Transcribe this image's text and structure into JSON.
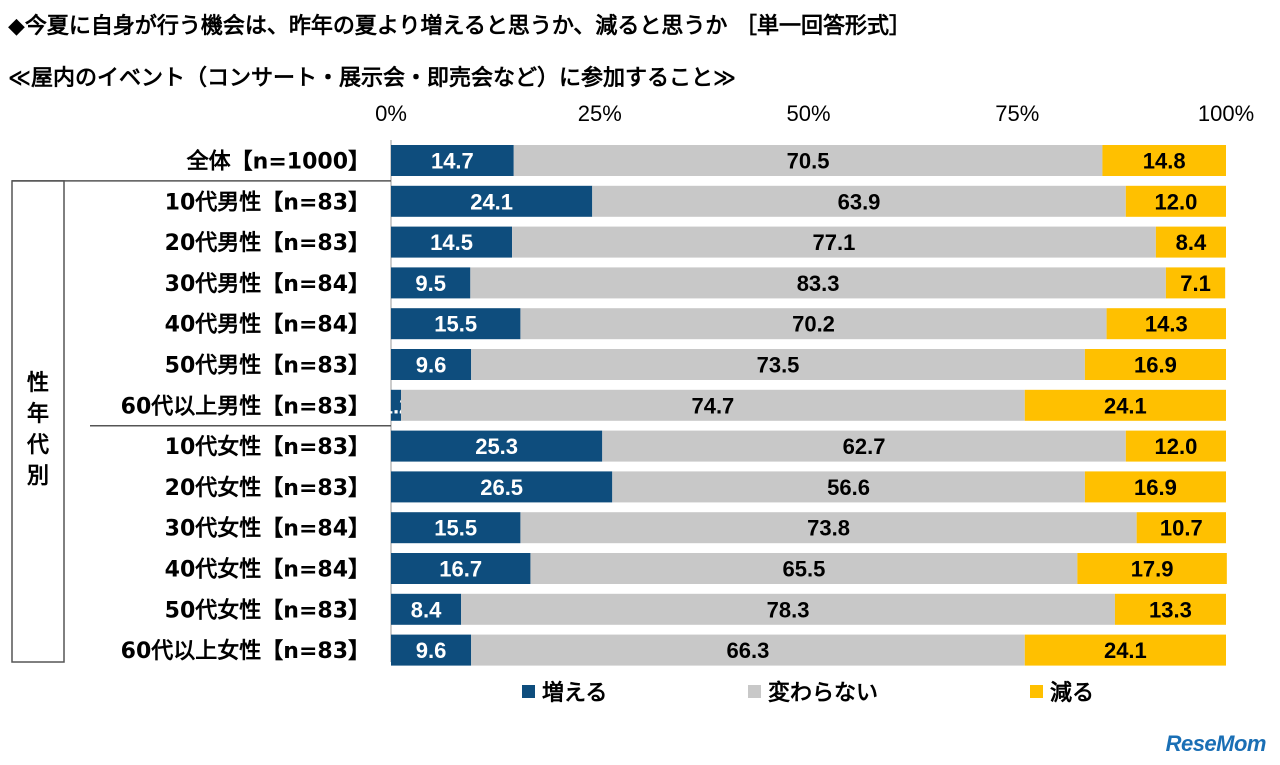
{
  "title_line1": "◆今夏に自身が行う機会は、昨年の夏より増えると思うか、減ると思うか ［単一回答形式］",
  "title_line2": "≪屋内のイベント（コンサート・展示会・即売会など）に参加すること≫",
  "group_label": "性年代別",
  "logo_text": "ReseMom",
  "chart_data": {
    "type": "bar",
    "orientation": "horizontal",
    "stacked": "percent",
    "x_ticks": [
      "0%",
      "25%",
      "50%",
      "75%",
      "100%"
    ],
    "xlim": [
      0,
      100
    ],
    "categories": [
      "全体【n=1000】",
      "10代男性【n=83】",
      "20代男性【n=83】",
      "30代男性【n=84】",
      "40代男性【n=84】",
      "50代男性【n=83】",
      "60代以上男性【n=83】",
      "10代女性【n=83】",
      "20代女性【n=83】",
      "30代女性【n=84】",
      "40代女性【n=84】",
      "50代女性【n=83】",
      "60代以上女性【n=83】"
    ],
    "series": [
      {
        "name": "増える",
        "color": "#0e4d7d",
        "values": [
          14.7,
          24.1,
          14.5,
          9.5,
          15.5,
          9.6,
          1.2,
          25.3,
          26.5,
          15.5,
          16.7,
          8.4,
          9.6
        ]
      },
      {
        "name": "変わらない",
        "color": "#c8c8c8",
        "values": [
          70.5,
          63.9,
          77.1,
          83.3,
          70.2,
          73.5,
          74.7,
          62.7,
          56.6,
          73.8,
          65.5,
          78.3,
          66.3
        ]
      },
      {
        "name": "減る",
        "color": "#ffc000",
        "values": [
          14.8,
          12.0,
          8.4,
          7.1,
          14.3,
          16.9,
          24.1,
          12.0,
          16.9,
          10.7,
          17.9,
          13.3,
          24.1
        ]
      }
    ],
    "legend_position": "bottom"
  }
}
